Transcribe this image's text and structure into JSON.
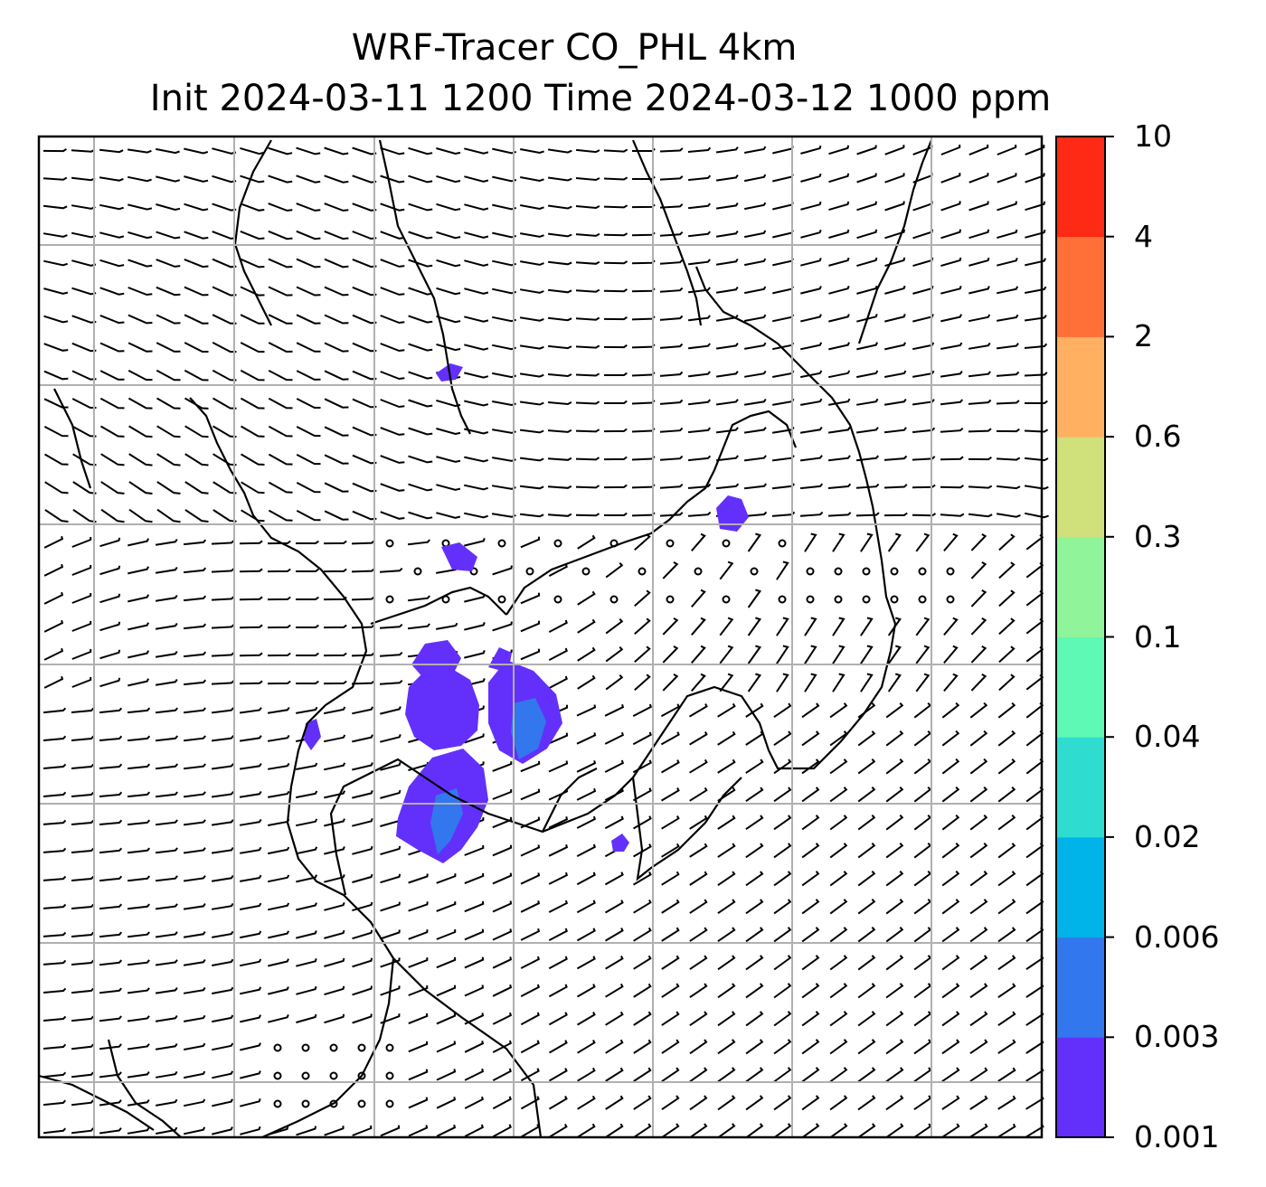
{
  "title": {
    "line1": "WRF-Tracer CO_PHL 4km",
    "line2": "Init 2024-03-11 1200 Time 2024-03-12 1000 ppm"
  },
  "colorbar": {
    "levels": [
      "0.001",
      "0.003",
      "0.006",
      "0.02",
      "0.04",
      "0.1",
      "0.3",
      "0.6",
      "2",
      "4",
      "10"
    ],
    "colors": [
      "#6330fb",
      "#3377ee",
      "#00b3e8",
      "#2fdcd0",
      "#5ef9b4",
      "#90f49a",
      "#d0e07a",
      "#ffb060",
      "#ff7038",
      "#ff2a15"
    ]
  },
  "map": {
    "grid_lines": true,
    "wind_barbs": true,
    "colors": {
      "frame": "#000000",
      "grid": "#b0b0b0",
      "coast": "#000000",
      "barb": "#000000"
    }
  }
}
